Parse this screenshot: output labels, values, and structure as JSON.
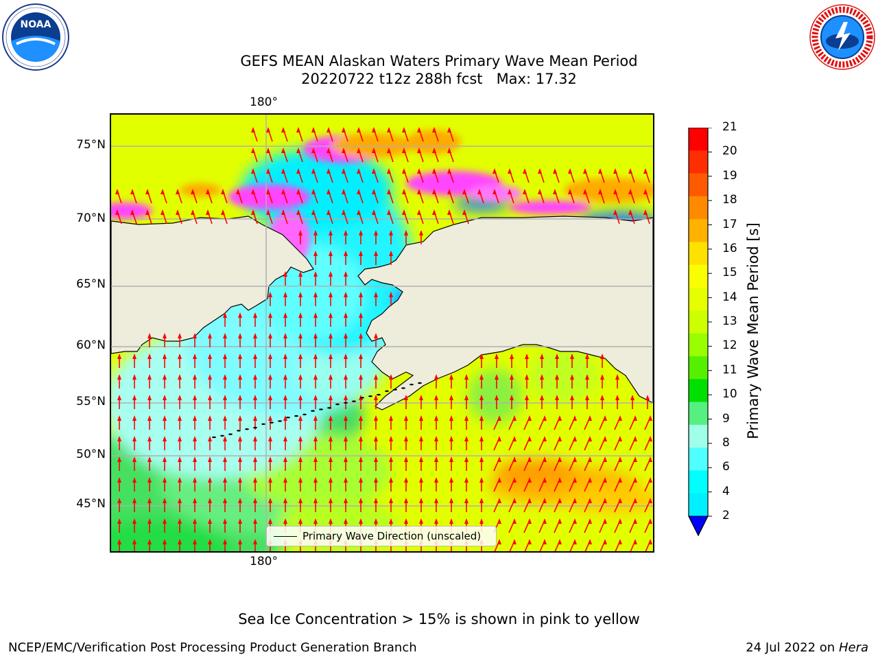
{
  "title": {
    "line1": "GEFS MEAN Alaskan Waters Primary Wave Mean Period",
    "line2": "20220722 t12z 288h fcst   Max: 17.32"
  },
  "map": {
    "lon_label": "180°",
    "lat_labels": [
      "75°N",
      "70°N",
      "65°N",
      "60°N",
      "55°N",
      "50°N",
      "45°N"
    ],
    "legend_text": "Primary Wave Direction (unscaled)",
    "ocean_base_color": "#d8ff00"
  },
  "colorbar": {
    "label": "Primary Wave Mean Period [s]",
    "ticks": [
      "21",
      "20",
      "19",
      "18",
      "17",
      "16",
      "15",
      "14",
      "13",
      "12",
      "11",
      "10",
      "9",
      "8",
      "6",
      "4",
      "2"
    ],
    "colors": [
      "#ff0000",
      "#ff2e00",
      "#ff5a00",
      "#ff8a00",
      "#ffb200",
      "#ffe100",
      "#f9ff00",
      "#e6ff00",
      "#ccff00",
      "#99ff00",
      "#55f000",
      "#00e000",
      "#55f080",
      "#a0ffe8",
      "#50ffff",
      "#00ffff",
      "#00f0ff",
      "#0080ff"
    ],
    "under_color": "#0000ff"
  },
  "footer": {
    "note": "Sea Ice Concentration > 15% is shown in pink to yellow",
    "credit": "NCEP/EMC/Verification Post Processing Product Generation Branch",
    "date": "24 Jul 2022 on ",
    "machine": "Hera"
  },
  "logos": {
    "noaa_text": "NOAA",
    "nws_ring_text": "NATIONAL WEATHER SERVICE",
    "noaa_ring_text": "NATIONAL OCEANIC AND ATMOSPHERIC ADMINISTRATION"
  }
}
